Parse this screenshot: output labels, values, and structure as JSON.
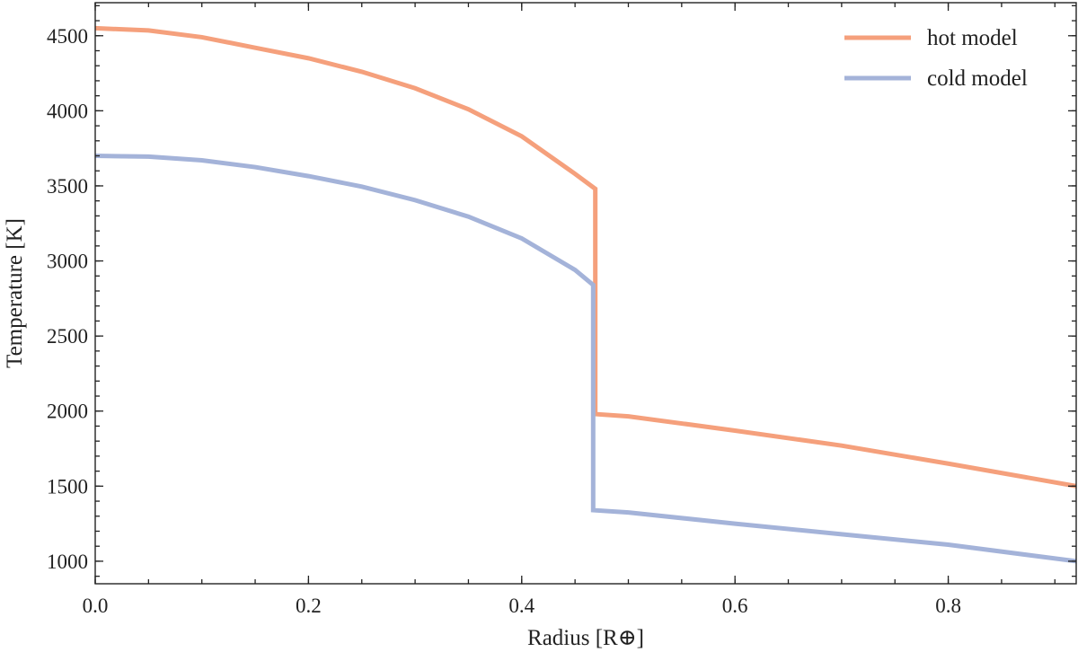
{
  "chart_data": {
    "type": "line",
    "xlabel": "Radius [R⊕]",
    "ylabel": "Temperature [K]",
    "xlim": [
      0.0,
      0.92
    ],
    "ylim": [
      850,
      4720
    ],
    "xticks": [
      0.0,
      0.2,
      0.4,
      0.6,
      0.8
    ],
    "xtick_labels": [
      "0.0",
      "0.2",
      "0.4",
      "0.6",
      "0.8"
    ],
    "yticks": [
      1000,
      1500,
      2000,
      2500,
      3000,
      3500,
      4000,
      4500
    ],
    "ytick_labels": [
      "1000",
      "1500",
      "2000",
      "2500",
      "3000",
      "3500",
      "4000",
      "4500"
    ],
    "grid": false,
    "legend_position": "top-right",
    "series": [
      {
        "name": "hot model",
        "color": "#f5a07c",
        "points": [
          [
            0.0,
            4550
          ],
          [
            0.05,
            4535
          ],
          [
            0.1,
            4490
          ],
          [
            0.15,
            4420
          ],
          [
            0.2,
            4350
          ],
          [
            0.25,
            4260
          ],
          [
            0.3,
            4150
          ],
          [
            0.35,
            4010
          ],
          [
            0.4,
            3830
          ],
          [
            0.45,
            3580
          ],
          [
            0.469,
            3480
          ],
          [
            0.469,
            1980
          ],
          [
            0.5,
            1965
          ],
          [
            0.6,
            1870
          ],
          [
            0.7,
            1770
          ],
          [
            0.8,
            1650
          ],
          [
            0.92,
            1500
          ]
        ]
      },
      {
        "name": "cold model",
        "color": "#a4b3d9",
        "points": [
          [
            0.0,
            3700
          ],
          [
            0.05,
            3695
          ],
          [
            0.1,
            3670
          ],
          [
            0.15,
            3625
          ],
          [
            0.2,
            3565
          ],
          [
            0.25,
            3495
          ],
          [
            0.3,
            3405
          ],
          [
            0.35,
            3295
          ],
          [
            0.4,
            3150
          ],
          [
            0.45,
            2940
          ],
          [
            0.467,
            2840
          ],
          [
            0.467,
            1340
          ],
          [
            0.5,
            1325
          ],
          [
            0.6,
            1250
          ],
          [
            0.7,
            1180
          ],
          [
            0.8,
            1110
          ],
          [
            0.92,
            1000
          ]
        ]
      }
    ]
  }
}
